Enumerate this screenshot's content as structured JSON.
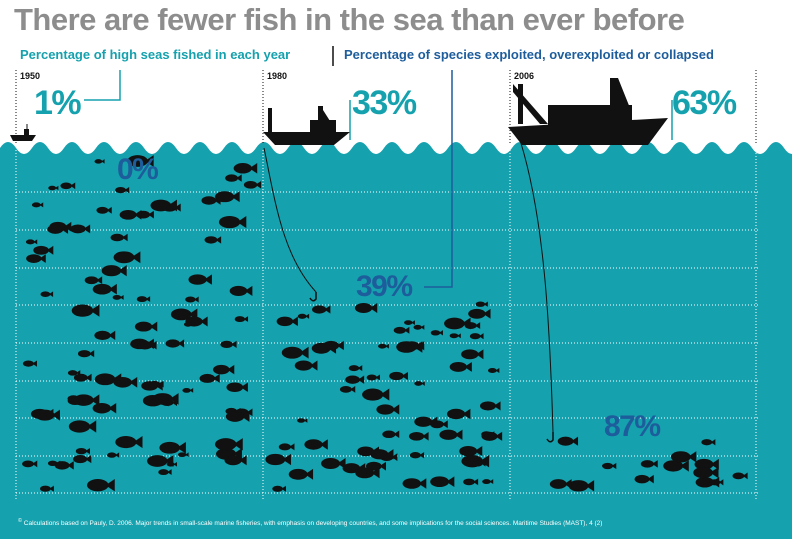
{
  "title": "There are fewer fish in the sea than ever before",
  "legend": {
    "high_seas": "Percentage of high seas fished in each year",
    "species": "Percentage of species exploited, overexploited or collapsed"
  },
  "panels": [
    {
      "year": "1950",
      "high_seas_pct": "1%",
      "species_pct": "0%"
    },
    {
      "year": "1980",
      "high_seas_pct": "33%",
      "species_pct": "39%"
    },
    {
      "year": "2006",
      "high_seas_pct": "63%",
      "species_pct": "87%"
    }
  ],
  "footnote": "Calculations based on Pauly, D. 2006. Major trends in small-scale marine fisheries, with emphasis on developing countries, and some implications for the social sciences. Maritime Studies (MAST), 4 (2)",
  "footnote_marker": "©",
  "colors": {
    "sea": "#15a1ad",
    "teal_text": "#15a1ad",
    "blue_text": "#1d5d9c",
    "title": "#8d8d8d",
    "ink": "#111111"
  }
}
